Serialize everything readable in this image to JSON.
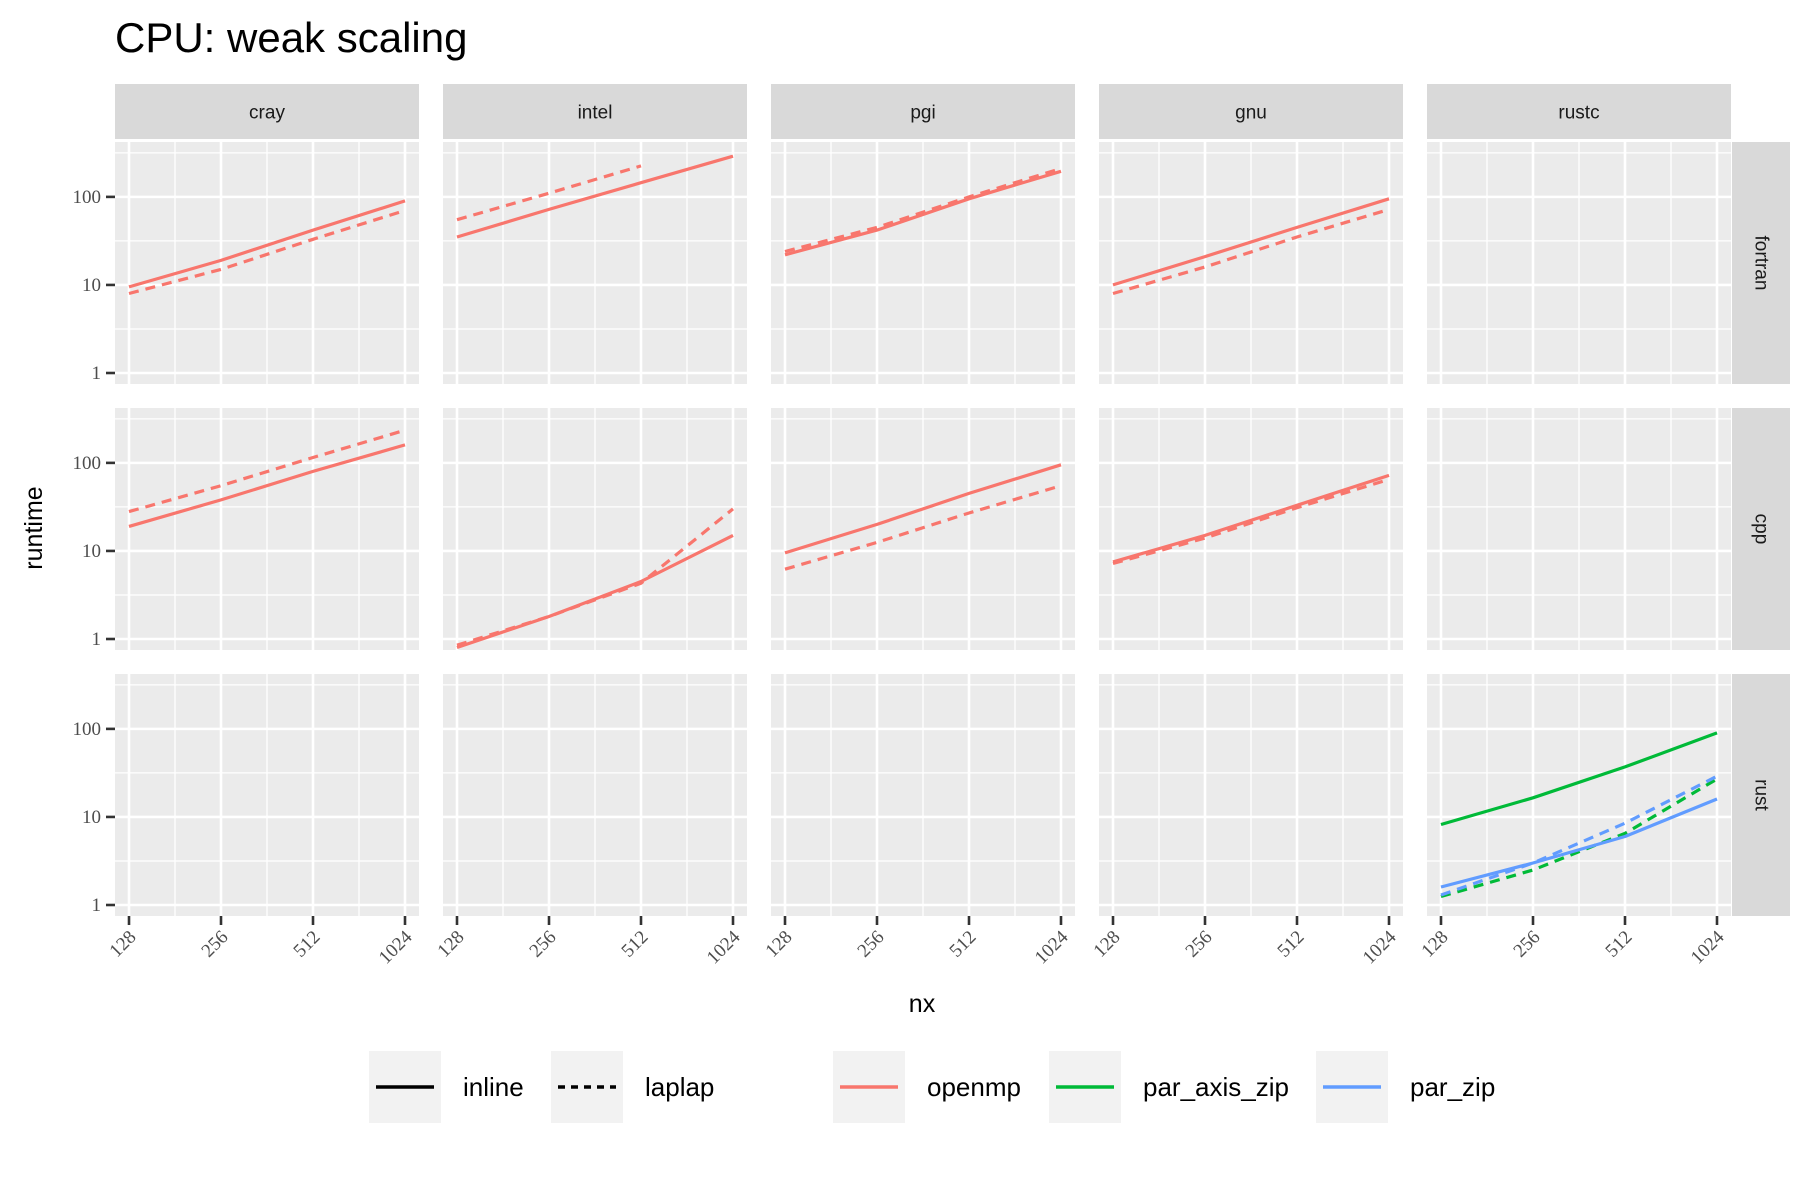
{
  "chart_data": {
    "type": "line",
    "title": "CPU: weak scaling",
    "xlabel": "nx",
    "ylabel": "runtime",
    "x_scale": "log2",
    "y_scale": "log10",
    "xlim": [
      128,
      1024
    ],
    "ylim": [
      0.75,
      420
    ],
    "x_ticks": [
      128,
      256,
      512,
      1024
    ],
    "x_tick_labels": [
      "128",
      "256",
      "512",
      "1024"
    ],
    "y_ticks": [
      1,
      10,
      100
    ],
    "y_tick_labels": [
      "1",
      "10",
      "100"
    ],
    "grid": true,
    "columns": [
      "cray",
      "intel",
      "pgi",
      "gnu",
      "rustc"
    ],
    "rows": [
      "fortran",
      "cpp",
      "rust"
    ],
    "legend_position": "bottom",
    "legend": {
      "linetype": [
        {
          "label": "inline",
          "dash": "solid"
        },
        {
          "label": "laplap",
          "dash": "dashed"
        }
      ],
      "color": [
        {
          "label": "openmp",
          "color": "#F8766D"
        },
        {
          "label": "par_axis_zip",
          "color": "#00BA38"
        },
        {
          "label": "par_zip",
          "color": "#619CFF"
        }
      ]
    },
    "panels": [
      {
        "column": "cray",
        "row": "fortran",
        "series": [
          {
            "color_group": "openmp",
            "linetype": "inline",
            "x": [
              128,
              256,
              512,
              1024
            ],
            "y": [
              9.5,
              19,
              42,
              90
            ]
          },
          {
            "color_group": "openmp",
            "linetype": "laplap",
            "x": [
              128,
              256,
              512,
              1024
            ],
            "y": [
              8,
              15,
              33,
              70
            ]
          }
        ]
      },
      {
        "column": "intel",
        "row": "fortran",
        "series": [
          {
            "color_group": "openmp",
            "linetype": "inline",
            "x": [
              128,
              256,
              512,
              1024
            ],
            "y": [
              35,
              72,
              145,
              290
            ]
          },
          {
            "color_group": "openmp",
            "linetype": "laplap",
            "x": [
              128,
              256,
              512
            ],
            "y": [
              55,
              110,
              225
            ]
          }
        ]
      },
      {
        "column": "pgi",
        "row": "fortran",
        "series": [
          {
            "color_group": "openmp",
            "linetype": "inline",
            "x": [
              128,
              256,
              512,
              1024
            ],
            "y": [
              22,
              42,
              95,
              195
            ]
          },
          {
            "color_group": "openmp",
            "linetype": "laplap",
            "x": [
              128,
              256,
              512,
              1024
            ],
            "y": [
              24,
              45,
              100,
              210
            ]
          }
        ]
      },
      {
        "column": "gnu",
        "row": "fortran",
        "series": [
          {
            "color_group": "openmp",
            "linetype": "inline",
            "x": [
              128,
              256,
              512,
              1024
            ],
            "y": [
              10,
              21,
              45,
              95
            ]
          },
          {
            "color_group": "openmp",
            "linetype": "laplap",
            "x": [
              128,
              256,
              512,
              1024
            ],
            "y": [
              8,
              16,
              35,
              72
            ]
          }
        ]
      },
      {
        "column": "rustc",
        "row": "fortran",
        "series": []
      },
      {
        "column": "cray",
        "row": "cpp",
        "series": [
          {
            "color_group": "openmp",
            "linetype": "inline",
            "x": [
              128,
              256,
              512,
              1024
            ],
            "y": [
              19,
              38,
              80,
              160
            ]
          },
          {
            "color_group": "openmp",
            "linetype": "laplap",
            "x": [
              128,
              256,
              512,
              1024
            ],
            "y": [
              28,
              55,
              115,
              235
            ]
          }
        ]
      },
      {
        "column": "intel",
        "row": "cpp",
        "series": [
          {
            "color_group": "openmp",
            "linetype": "inline",
            "x": [
              128,
              256,
              512,
              1024
            ],
            "y": [
              0.8,
              1.8,
              4.5,
              15
            ]
          },
          {
            "color_group": "openmp",
            "linetype": "laplap",
            "x": [
              128,
              256,
              512,
              1024
            ],
            "y": [
              0.85,
              1.8,
              4.3,
              30
            ]
          }
        ]
      },
      {
        "column": "pgi",
        "row": "cpp",
        "series": [
          {
            "color_group": "openmp",
            "linetype": "inline",
            "x": [
              128,
              256,
              512,
              1024
            ],
            "y": [
              9.5,
              20,
              45,
              95
            ]
          },
          {
            "color_group": "openmp",
            "linetype": "laplap",
            "x": [
              128,
              256,
              512,
              1024
            ],
            "y": [
              6.2,
              12.5,
              27,
              55
            ]
          }
        ]
      },
      {
        "column": "gnu",
        "row": "cpp",
        "series": [
          {
            "color_group": "openmp",
            "linetype": "inline",
            "x": [
              128,
              256,
              512,
              1024
            ],
            "y": [
              7.5,
              15,
              33,
              72
            ]
          },
          {
            "color_group": "openmp",
            "linetype": "laplap",
            "x": [
              128,
              256,
              512,
              1024
            ],
            "y": [
              7.2,
              14,
              31,
              65
            ]
          }
        ]
      },
      {
        "column": "rustc",
        "row": "cpp",
        "series": []
      },
      {
        "column": "cray",
        "row": "rust",
        "series": []
      },
      {
        "column": "intel",
        "row": "rust",
        "series": []
      },
      {
        "column": "pgi",
        "row": "rust",
        "series": []
      },
      {
        "column": "gnu",
        "row": "rust",
        "series": []
      },
      {
        "column": "rustc",
        "row": "rust",
        "series": [
          {
            "color_group": "par_axis_zip",
            "linetype": "inline",
            "x": [
              128,
              256,
              512,
              1024
            ],
            "y": [
              8.2,
              16.5,
              37,
              90
            ]
          },
          {
            "color_group": "par_axis_zip",
            "linetype": "laplap",
            "x": [
              128,
              256,
              512,
              1024
            ],
            "y": [
              1.25,
              2.5,
              6.5,
              27
            ]
          },
          {
            "color_group": "par_zip",
            "linetype": "inline",
            "x": [
              128,
              256,
              512,
              1024
            ],
            "y": [
              1.6,
              3,
              6,
              16
            ]
          },
          {
            "color_group": "par_zip",
            "linetype": "laplap",
            "x": [
              128,
              256,
              512,
              1024
            ],
            "y": [
              1.3,
              3,
              8.5,
              29
            ]
          }
        ]
      }
    ]
  }
}
